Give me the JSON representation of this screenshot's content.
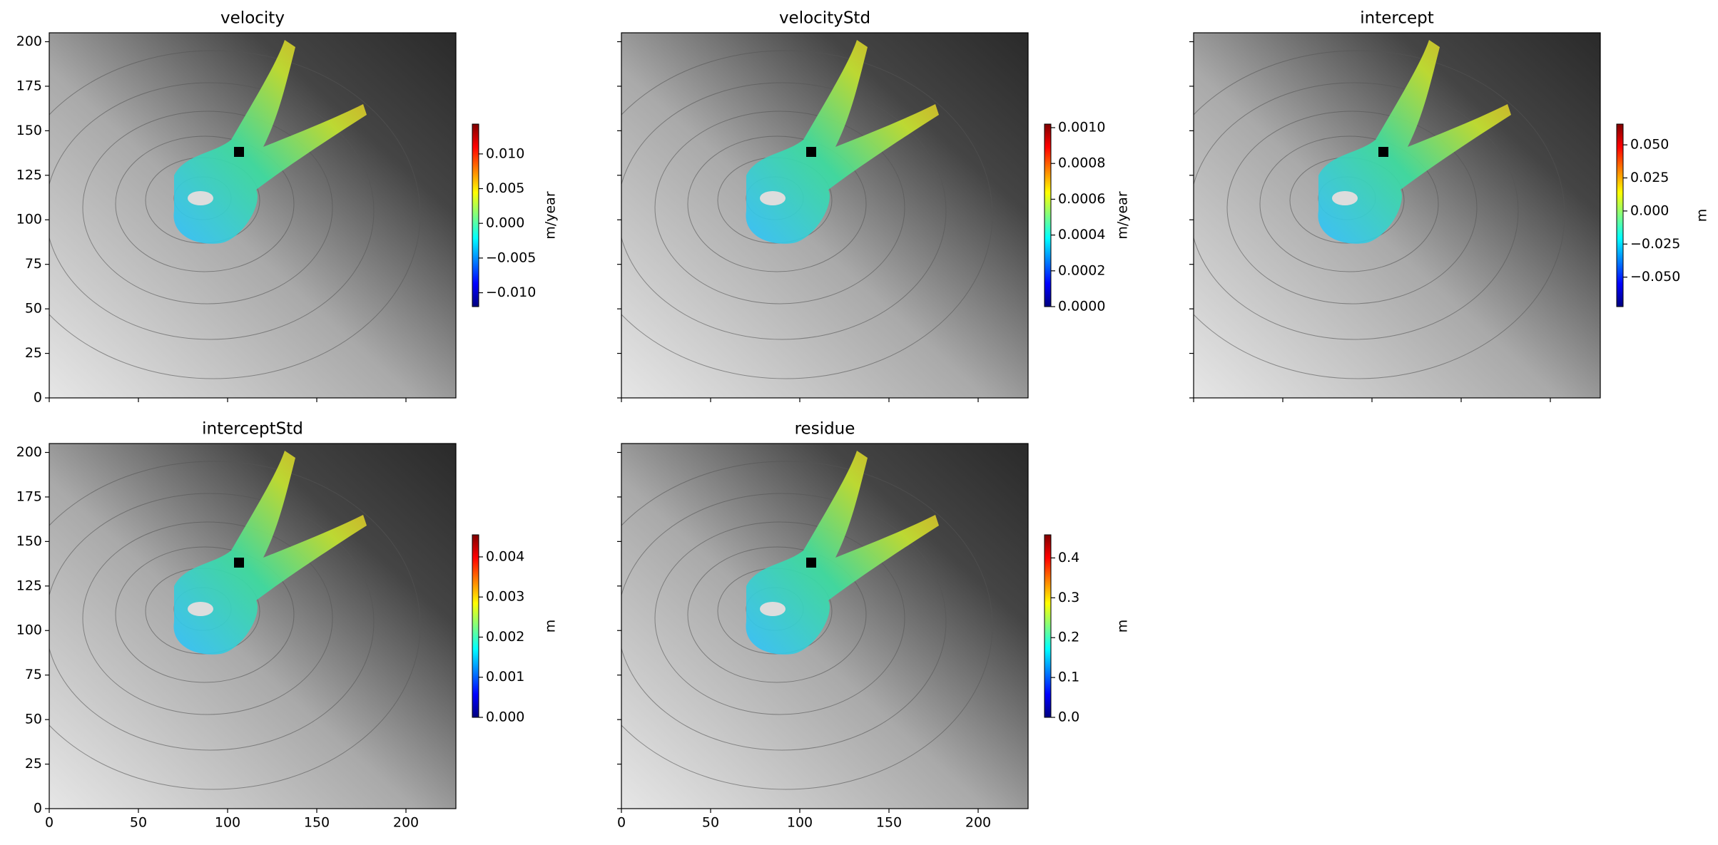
{
  "chart_data": [
    {
      "type": "image",
      "title": "velocity",
      "xlim": [
        0,
        228
      ],
      "ylim": [
        0,
        205
      ],
      "xticks": [
        0,
        50,
        100,
        150,
        200
      ],
      "yticks": [
        0,
        25,
        50,
        75,
        100,
        125,
        150,
        175,
        200
      ],
      "x_tick_labels": false,
      "y_tick_labels": true,
      "colormap": "jet",
      "colorbar": {
        "label": "m/year",
        "lim": [
          -0.012,
          0.0143
        ],
        "ticks": [
          {
            "value": -0.01,
            "label": "−0.010"
          },
          {
            "value": -0.005,
            "label": "−0.005"
          },
          {
            "value": 0,
            "label": "0.000"
          },
          {
            "value": 0.005,
            "label": "0.005"
          },
          {
            "value": 0.01,
            "label": "0.010"
          }
        ]
      }
    },
    {
      "type": "image",
      "title": "velocityStd",
      "xlim": [
        0,
        228
      ],
      "ylim": [
        0,
        205
      ],
      "xticks": [
        0,
        50,
        100,
        150,
        200
      ],
      "yticks": [
        0,
        25,
        50,
        75,
        100,
        125,
        150,
        175,
        200
      ],
      "x_tick_labels": false,
      "y_tick_labels": false,
      "colormap": "jet",
      "colorbar": {
        "label": "m/year",
        "lim": [
          0,
          0.00102
        ],
        "ticks": [
          {
            "value": 0,
            "label": "0.0000"
          },
          {
            "value": 0.0002,
            "label": "0.0002"
          },
          {
            "value": 0.0004,
            "label": "0.0004"
          },
          {
            "value": 0.0006,
            "label": "0.0006"
          },
          {
            "value": 0.0008,
            "label": "0.0008"
          },
          {
            "value": 0.001,
            "label": "0.0010"
          }
        ]
      }
    },
    {
      "type": "image",
      "title": "intercept",
      "xlim": [
        0,
        228
      ],
      "ylim": [
        0,
        205
      ],
      "xticks": [
        0,
        50,
        100,
        150,
        200
      ],
      "yticks": [
        0,
        25,
        50,
        75,
        100,
        125,
        150,
        175,
        200
      ],
      "x_tick_labels": false,
      "y_tick_labels": false,
      "colormap": "jet",
      "colorbar": {
        "label": "m",
        "lim": [
          -0.0723,
          0.0657
        ],
        "ticks": [
          {
            "value": -0.05,
            "label": "−0.050"
          },
          {
            "value": -0.025,
            "label": "−0.025"
          },
          {
            "value": 0,
            "label": "0.000"
          },
          {
            "value": 0.025,
            "label": "0.025"
          },
          {
            "value": 0.05,
            "label": "0.050"
          }
        ]
      }
    },
    {
      "type": "image",
      "title": "interceptStd",
      "xlim": [
        0,
        228
      ],
      "ylim": [
        0,
        205
      ],
      "xticks": [
        0,
        50,
        100,
        150,
        200
      ],
      "yticks": [
        0,
        25,
        50,
        75,
        100,
        125,
        150,
        175,
        200
      ],
      "x_tick_labels": true,
      "y_tick_labels": true,
      "colormap": "jet",
      "colorbar": {
        "label": "m",
        "lim": [
          0,
          0.00455
        ],
        "ticks": [
          {
            "value": 0,
            "label": "0.000"
          },
          {
            "value": 0.001,
            "label": "0.001"
          },
          {
            "value": 0.002,
            "label": "0.002"
          },
          {
            "value": 0.003,
            "label": "0.003"
          },
          {
            "value": 0.004,
            "label": "0.004"
          }
        ]
      }
    },
    {
      "type": "image",
      "title": "residue",
      "xlim": [
        0,
        228
      ],
      "ylim": [
        0,
        205
      ],
      "xticks": [
        0,
        50,
        100,
        150,
        200
      ],
      "yticks": [
        0,
        25,
        50,
        75,
        100,
        125,
        150,
        175,
        200
      ],
      "x_tick_labels": true,
      "y_tick_labels": false,
      "colormap": "jet",
      "colorbar": {
        "label": "m",
        "lim": [
          0,
          0.458
        ],
        "ticks": [
          {
            "value": 0,
            "label": "0.0"
          },
          {
            "value": 0.1,
            "label": "0.1"
          },
          {
            "value": 0.2,
            "label": "0.2"
          },
          {
            "value": 0.3,
            "label": "0.3"
          },
          {
            "value": 0.4,
            "label": "0.4"
          }
        ]
      }
    }
  ]
}
